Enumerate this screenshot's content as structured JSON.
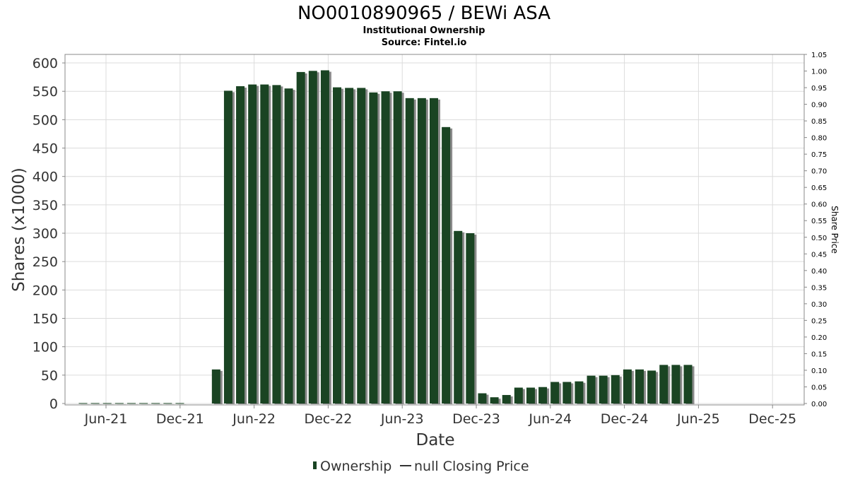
{
  "chart_data": {
    "type": "bar",
    "title": "NO0010890965 / BEWi ASA",
    "subtitle_lines": [
      "Institutional Ownership",
      "Source: Fintel.io"
    ],
    "xlabel": "Date",
    "ylabel": "Shares (x1000)",
    "y2label": "Share Price",
    "ylim": [
      0,
      615
    ],
    "y_ticks": [
      0,
      50,
      100,
      150,
      200,
      250,
      300,
      350,
      400,
      450,
      500,
      550,
      600
    ],
    "y2lim": [
      0,
      1.05
    ],
    "y2_ticks": [
      "0.00",
      "0.05",
      "0.10",
      "0.15",
      "0.20",
      "0.25",
      "0.30",
      "0.35",
      "0.40",
      "0.45",
      "0.50",
      "0.55",
      "0.60",
      "0.65",
      "0.70",
      "0.75",
      "0.80",
      "0.85",
      "0.90",
      "0.95",
      "1.00",
      "1.05"
    ],
    "x_tick_labels": [
      "Jun-21",
      "Dec-21",
      "Jun-22",
      "Dec-22",
      "Jun-23",
      "Dec-23",
      "Jun-24",
      "Dec-24",
      "Jun-25",
      "Dec-25"
    ],
    "grid": true,
    "legend_position": "bottom-center",
    "colors": {
      "bar": "#1a4423",
      "bar_shadow": "#8a8a8a",
      "frame": "#888888"
    },
    "series": [
      {
        "name": "Ownership",
        "values": [
          0.8,
          0.8,
          0.8,
          0.8,
          0.8,
          0.8,
          0.8,
          0.8,
          0.8,
          0,
          0,
          60,
          551,
          559,
          562,
          562,
          561,
          555,
          584,
          586,
          587,
          557,
          556,
          556,
          548,
          550,
          550,
          538,
          538,
          538,
          487,
          304,
          300,
          18,
          11,
          15,
          28,
          28,
          29,
          38,
          38,
          39,
          49,
          49,
          50,
          60,
          60,
          58,
          68,
          68,
          68
        ]
      }
    ],
    "legend": [
      {
        "label": "Ownership",
        "kind": "bar"
      },
      {
        "label": "null Closing Price",
        "kind": "line"
      }
    ]
  }
}
